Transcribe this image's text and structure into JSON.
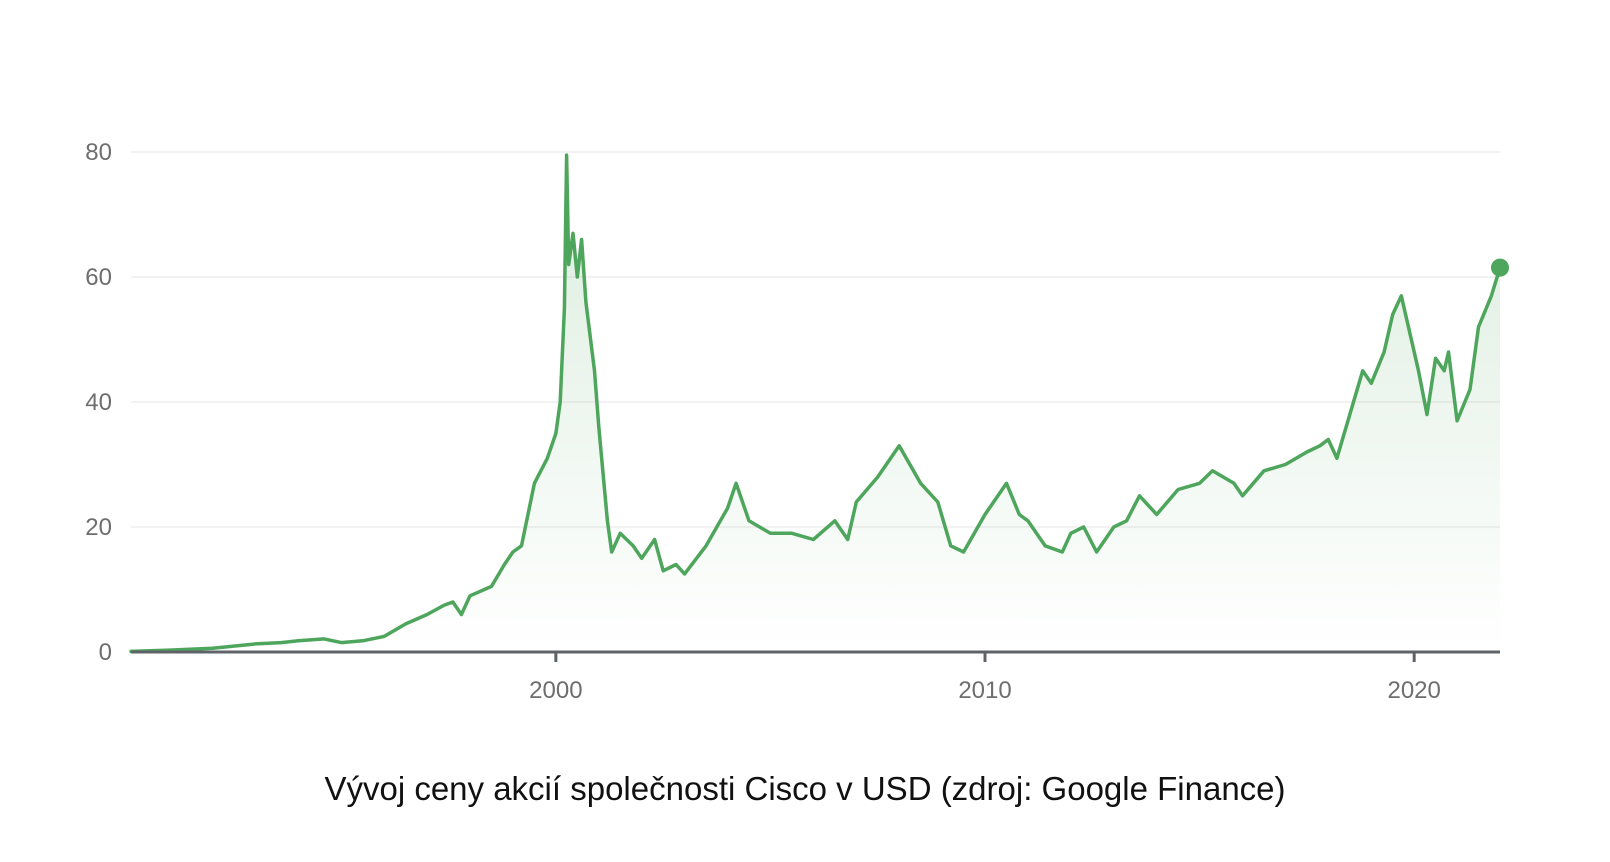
{
  "caption": "Vývoj ceny akcií společnosti Cisco v USD (zdroj: Google Finance)",
  "colors": {
    "line": "#4ea55c",
    "fill": "#4ea55c",
    "axis": "#5f6368",
    "grid": "#eeeeee",
    "tick_text": "#6e6e6e"
  },
  "chart_data": {
    "type": "line",
    "title": "",
    "xlabel": "",
    "ylabel": "",
    "x_range": [
      1990.1,
      2022.0
    ],
    "ylim": [
      0,
      80
    ],
    "y_ticks": [
      0,
      20,
      40,
      60,
      80
    ],
    "x_ticks": [
      2000,
      2010,
      2020
    ],
    "grid": "horizontal",
    "series": [
      {
        "x": [
          1990.1,
          1991.0,
          1992.0,
          1993.0,
          1993.6,
          1994.0,
          1994.6,
          1995.0,
          1995.5,
          1996.0,
          1996.5,
          1997.0,
          1997.4,
          1997.6,
          1997.8,
          1998.0,
          1998.5,
          1998.8,
          1999.0,
          1999.2,
          1999.5,
          1999.8,
          2000.0,
          2000.1,
          2000.2,
          2000.25,
          2000.3,
          2000.4,
          2000.5,
          2000.6,
          2000.7,
          2000.9,
          2001.0,
          2001.2,
          2001.3,
          2001.5,
          2001.8,
          2002.0,
          2002.3,
          2002.5,
          2002.8,
          2003.0,
          2003.5,
          2004.0,
          2004.2,
          2004.5,
          2005.0,
          2005.5,
          2006.0,
          2006.5,
          2006.8,
          2007.0,
          2007.5,
          2007.8,
          2008.0,
          2008.5,
          2008.9,
          2009.2,
          2009.5,
          2010.0,
          2010.2,
          2010.5,
          2010.8,
          2011.0,
          2011.4,
          2011.8,
          2012.0,
          2012.3,
          2012.6,
          2013.0,
          2013.3,
          2013.6,
          2014.0,
          2014.5,
          2015.0,
          2015.3,
          2015.8,
          2016.0,
          2016.5,
          2017.0,
          2017.5,
          2017.8,
          2018.0,
          2018.2,
          2018.5,
          2018.8,
          2019.0,
          2019.3,
          2019.5,
          2019.7,
          2020.0,
          2020.1,
          2020.3,
          2020.5,
          2020.7,
          2020.8,
          2021.0,
          2021.3,
          2021.5,
          2021.8,
          2022.0
        ],
        "values": [
          0.1,
          0.3,
          0.6,
          1.3,
          1.5,
          1.8,
          2.1,
          1.5,
          1.8,
          2.5,
          4.5,
          6.0,
          7.5,
          8.0,
          6.0,
          9.0,
          10.5,
          14.0,
          16.0,
          17.0,
          27.0,
          31.0,
          35.0,
          40.0,
          55.0,
          79.5,
          62.0,
          67.0,
          60.0,
          66.0,
          56.0,
          45.0,
          36.0,
          21.0,
          16.0,
          19.0,
          17.0,
          15.0,
          18.0,
          13.0,
          14.0,
          12.5,
          17.0,
          23.0,
          27.0,
          21.0,
          19.0,
          19.0,
          18.0,
          21.0,
          18.0,
          24.0,
          28.0,
          31.0,
          33.0,
          27.0,
          24.0,
          17.0,
          16.0,
          22.0,
          24.0,
          27.0,
          22.0,
          21.0,
          17.0,
          16.0,
          19.0,
          20.0,
          16.0,
          20.0,
          21.0,
          25.0,
          22.0,
          26.0,
          27.0,
          29.0,
          27.0,
          25.0,
          29.0,
          30.0,
          32.0,
          33.0,
          34.0,
          31.0,
          38.0,
          45.0,
          43.0,
          48.0,
          54.0,
          57.0,
          48.0,
          45.0,
          38.0,
          47.0,
          45.0,
          48.0,
          37.0,
          42.0,
          52.0,
          57.0,
          61.5
        ]
      }
    ]
  }
}
